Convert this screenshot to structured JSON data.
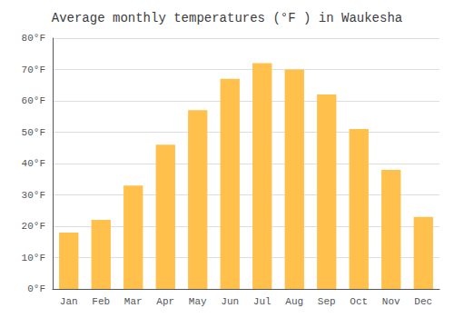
{
  "chart_data": {
    "type": "bar",
    "title": "Average monthly temperatures (°F ) in Waukesha",
    "categories": [
      "Jan",
      "Feb",
      "Mar",
      "Apr",
      "May",
      "Jun",
      "Jul",
      "Aug",
      "Sep",
      "Oct",
      "Nov",
      "Dec"
    ],
    "values": [
      18,
      22,
      33,
      46,
      57,
      67,
      72,
      70,
      62,
      51,
      38,
      23
    ],
    "color": "#FFC04C",
    "ylim": [
      0,
      80
    ],
    "yticks": [
      {
        "value": 0,
        "label": "0°F"
      },
      {
        "value": 10,
        "label": "10°F"
      },
      {
        "value": 20,
        "label": "20°F"
      },
      {
        "value": 30,
        "label": "30°F"
      },
      {
        "value": 40,
        "label": "40°F"
      },
      {
        "value": 50,
        "label": "50°F"
      },
      {
        "value": 60,
        "label": "60°F"
      },
      {
        "value": 70,
        "label": "70°F"
      },
      {
        "value": 80,
        "label": "80°F"
      }
    ],
    "grid": true
  }
}
